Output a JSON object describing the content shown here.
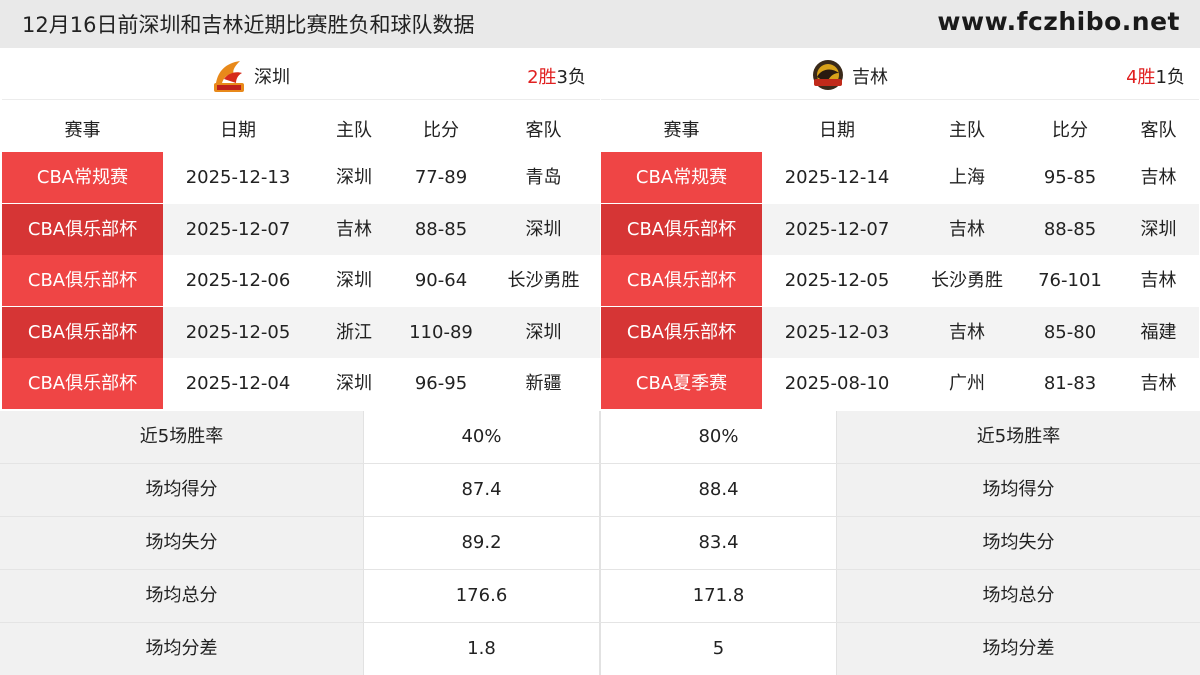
{
  "header": {
    "title": "12月16日前深圳和吉林近期比赛胜负和球队数据",
    "site": "www.fczhibo.net"
  },
  "teams": [
    {
      "name": "深圳",
      "wins": "2胜",
      "losses": "3负",
      "logo_icon": "shenzhen-team-logo",
      "columns": [
        "赛事",
        "日期",
        "主队",
        "比分",
        "客队"
      ],
      "games": [
        {
          "comp": "CBA常规赛",
          "date": "2025-12-13",
          "home": "深圳",
          "score": "77-89",
          "away": "青岛",
          "color": "#ef4545"
        },
        {
          "comp": "CBA俱乐部杯",
          "date": "2025-12-07",
          "home": "吉林",
          "score": "88-85",
          "away": "深圳",
          "color": "#d63535"
        },
        {
          "comp": "CBA俱乐部杯",
          "date": "2025-12-06",
          "home": "深圳",
          "score": "90-64",
          "away": "长沙勇胜",
          "color": "#ef4545"
        },
        {
          "comp": "CBA俱乐部杯",
          "date": "2025-12-05",
          "home": "浙江",
          "score": "110-89",
          "away": "深圳",
          "color": "#d63535"
        },
        {
          "comp": "CBA俱乐部杯",
          "date": "2025-12-04",
          "home": "深圳",
          "score": "96-95",
          "away": "新疆",
          "color": "#ef4545"
        }
      ]
    },
    {
      "name": "吉林",
      "wins": "4胜",
      "losses": "1负",
      "logo_icon": "jilin-team-logo",
      "columns": [
        "赛事",
        "日期",
        "主队",
        "比分",
        "客队"
      ],
      "games": [
        {
          "comp": "CBA常规赛",
          "date": "2025-12-14",
          "home": "上海",
          "score": "95-85",
          "away": "吉林",
          "color": "#ef4545"
        },
        {
          "comp": "CBA俱乐部杯",
          "date": "2025-12-07",
          "home": "吉林",
          "score": "88-85",
          "away": "深圳",
          "color": "#d63535"
        },
        {
          "comp": "CBA俱乐部杯",
          "date": "2025-12-05",
          "home": "长沙勇胜",
          "score": "76-101",
          "away": "吉林",
          "color": "#ef4545"
        },
        {
          "comp": "CBA俱乐部杯",
          "date": "2025-12-03",
          "home": "吉林",
          "score": "85-80",
          "away": "福建",
          "color": "#d63535"
        },
        {
          "comp": "CBA夏季赛",
          "date": "2025-08-10",
          "home": "广州",
          "score": "81-83",
          "away": "吉林",
          "color": "#ef4545"
        }
      ]
    }
  ],
  "stats": [
    {
      "label": "近5场胜率",
      "left": "40%",
      "right": "80%"
    },
    {
      "label": "场均得分",
      "left": "87.4",
      "right": "88.4"
    },
    {
      "label": "场均失分",
      "left": "89.2",
      "right": "83.4"
    },
    {
      "label": "场均总分",
      "left": "176.6",
      "right": "171.8"
    },
    {
      "label": "场均分差",
      "left": "1.8",
      "right": "5"
    }
  ],
  "colors": {
    "accent_red": "#ef4545",
    "accent_red_dark": "#d63535",
    "win_red": "#e02020"
  }
}
